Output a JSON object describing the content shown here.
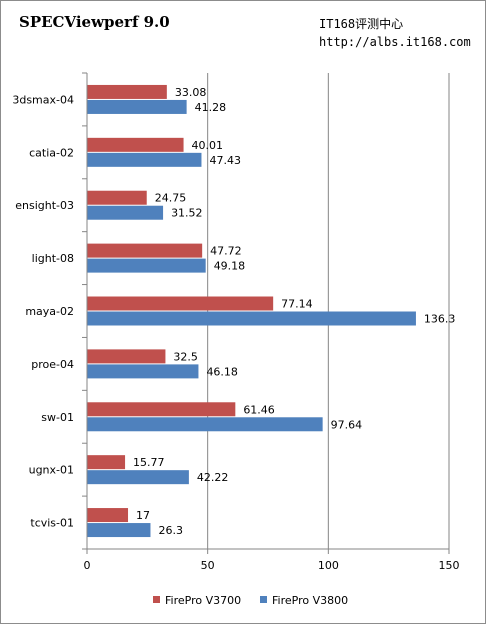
{
  "title": "SPECViewperf 9.0",
  "watermark": {
    "line1": "IT168评测中心",
    "line2": "http://albs.it168.com"
  },
  "chart_data": {
    "type": "bar",
    "orientation": "horizontal",
    "title": "SPECViewperf 9.0",
    "categories": [
      "3dsmax-04",
      "catia-02",
      "ensight-03",
      "light-08",
      "maya-02",
      "proe-04",
      "sw-01",
      "ugnx-01",
      "tcvis-01"
    ],
    "series": [
      {
        "name": "FirePro V3700",
        "color": "#c0504d",
        "values": [
          33.08,
          40.01,
          24.75,
          47.72,
          77.14,
          32.5,
          61.46,
          15.77,
          17
        ]
      },
      {
        "name": "FirePro V3800",
        "color": "#4f81bd",
        "values": [
          41.28,
          47.43,
          31.52,
          49.18,
          136.3,
          46.18,
          97.64,
          42.22,
          26.3
        ]
      }
    ],
    "data_labels": [
      [
        "33.08",
        "40.01",
        "24.75",
        "47.72",
        "77.14",
        "32.5",
        "61.46",
        "15.77",
        "17"
      ],
      [
        "41.28",
        "47.43",
        "31.52",
        "49.18",
        "136.3",
        "46.18",
        "97.64",
        "42.22",
        "26.3"
      ]
    ],
    "xlim": [
      0,
      150
    ],
    "xticks": [
      0,
      50,
      100,
      150
    ],
    "xtick_labels": [
      "0",
      "50",
      "100",
      "150"
    ],
    "grid": "vertical",
    "legend": "bottom",
    "xlabel": "",
    "ylabel": ""
  }
}
